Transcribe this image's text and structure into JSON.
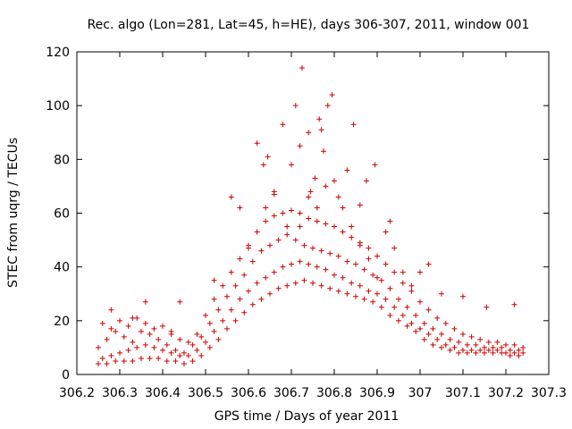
{
  "chart_data": {
    "type": "scatter",
    "title": "Rec. algo (Lon=281, Lat=45, h=HE), days 306-307, 2011, window 001",
    "xlabel": "GPS time / Days of year 2011",
    "ylabel": "STEC from uqrg / TECUs",
    "xlim": [
      306.2,
      307.3
    ],
    "ylim": [
      0,
      120
    ],
    "xticks": [
      306.2,
      306.3,
      306.4,
      306.5,
      306.6,
      306.7,
      306.8,
      306.9,
      307,
      307.1,
      307.2,
      307.3
    ],
    "xtick_labels": [
      "306.2",
      "306.3",
      "306.4",
      "306.5",
      "306.6",
      "306.7",
      "306.8",
      "306.9",
      "307",
      "307.1",
      "307.2",
      "307.3"
    ],
    "yticks": [
      0,
      20,
      40,
      60,
      80,
      100,
      120
    ],
    "ytick_labels": [
      "0",
      "20",
      "40",
      "60",
      "80",
      "100",
      "120"
    ],
    "grid": false,
    "marker": "+",
    "color": "#cc0000",
    "series": [
      {
        "points": [
          [
            306.25,
            4
          ],
          [
            306.27,
            4
          ],
          [
            306.29,
            5
          ],
          [
            306.31,
            5
          ],
          [
            306.33,
            5
          ],
          [
            306.35,
            6
          ],
          [
            306.37,
            6
          ],
          [
            306.39,
            6
          ],
          [
            306.41,
            5
          ],
          [
            306.43,
            5
          ],
          [
            306.45,
            4
          ],
          [
            306.47,
            5
          ],
          [
            306.49,
            7
          ],
          [
            306.51,
            10
          ],
          [
            306.53,
            13
          ],
          [
            306.55,
            17
          ],
          [
            306.57,
            20
          ],
          [
            306.59,
            23
          ],
          [
            306.61,
            26
          ],
          [
            306.63,
            28
          ],
          [
            306.65,
            30
          ],
          [
            306.67,
            32
          ],
          [
            306.69,
            33
          ],
          [
            306.71,
            34
          ],
          [
            306.73,
            35
          ],
          [
            306.75,
            34
          ],
          [
            306.77,
            33
          ],
          [
            306.79,
            32
          ],
          [
            306.81,
            31
          ],
          [
            306.83,
            30
          ],
          [
            306.85,
            29
          ],
          [
            306.87,
            28
          ],
          [
            306.89,
            27
          ],
          [
            306.91,
            25
          ],
          [
            306.93,
            22
          ],
          [
            306.95,
            20
          ],
          [
            306.97,
            18
          ],
          [
            306.99,
            16
          ],
          [
            307.01,
            13
          ],
          [
            307.03,
            11
          ],
          [
            307.05,
            10
          ],
          [
            307.07,
            9
          ],
          [
            307.09,
            8
          ],
          [
            307.11,
            8
          ],
          [
            307.13,
            8
          ],
          [
            307.15,
            8
          ],
          [
            307.17,
            8
          ],
          [
            307.19,
            8
          ],
          [
            307.21,
            7
          ],
          [
            307.23,
            7
          ],
          [
            306.26,
            6
          ],
          [
            306.28,
            7
          ],
          [
            306.3,
            8
          ],
          [
            306.32,
            9
          ],
          [
            306.34,
            10
          ],
          [
            306.36,
            11
          ],
          [
            306.38,
            10
          ],
          [
            306.4,
            9
          ],
          [
            306.42,
            8
          ],
          [
            306.44,
            7
          ],
          [
            306.46,
            7
          ],
          [
            306.48,
            9
          ],
          [
            306.5,
            12
          ],
          [
            306.52,
            16
          ],
          [
            306.54,
            20
          ],
          [
            306.56,
            24
          ],
          [
            306.58,
            28
          ],
          [
            306.6,
            31
          ],
          [
            306.62,
            34
          ],
          [
            306.64,
            36
          ],
          [
            306.66,
            38
          ],
          [
            306.68,
            40
          ],
          [
            306.7,
            41
          ],
          [
            306.72,
            42
          ],
          [
            306.74,
            41
          ],
          [
            306.76,
            40
          ],
          [
            306.78,
            39
          ],
          [
            306.8,
            37
          ],
          [
            306.82,
            36
          ],
          [
            306.84,
            34
          ],
          [
            306.86,
            33
          ],
          [
            306.88,
            31
          ],
          [
            306.9,
            30
          ],
          [
            306.92,
            28
          ],
          [
            306.94,
            25
          ],
          [
            306.96,
            22
          ],
          [
            306.98,
            19
          ],
          [
            307.0,
            17
          ],
          [
            307.02,
            15
          ],
          [
            307.04,
            13
          ],
          [
            307.06,
            11
          ],
          [
            307.08,
            10
          ],
          [
            307.1,
            9
          ],
          [
            307.12,
            9
          ],
          [
            307.14,
            9
          ],
          [
            307.16,
            9
          ],
          [
            307.18,
            9
          ],
          [
            307.2,
            8
          ],
          [
            307.22,
            8
          ],
          [
            307.24,
            8
          ],
          [
            306.25,
            10
          ],
          [
            306.27,
            13
          ],
          [
            306.29,
            16
          ],
          [
            306.31,
            14
          ],
          [
            306.33,
            12
          ],
          [
            306.35,
            16
          ],
          [
            306.37,
            15
          ],
          [
            306.39,
            13
          ],
          [
            306.41,
            11
          ],
          [
            306.43,
            9
          ],
          [
            306.45,
            8
          ],
          [
            306.47,
            11
          ],
          [
            306.49,
            14
          ],
          [
            306.51,
            19
          ],
          [
            306.53,
            24
          ],
          [
            306.55,
            29
          ],
          [
            306.57,
            33
          ],
          [
            306.59,
            37
          ],
          [
            306.61,
            42
          ],
          [
            306.63,
            46
          ],
          [
            306.65,
            48
          ],
          [
            306.67,
            50
          ],
          [
            306.69,
            52
          ],
          [
            306.71,
            50
          ],
          [
            306.73,
            48
          ],
          [
            306.75,
            47
          ],
          [
            306.77,
            46
          ],
          [
            306.79,
            45
          ],
          [
            306.81,
            44
          ],
          [
            306.83,
            42
          ],
          [
            306.85,
            41
          ],
          [
            306.87,
            39
          ],
          [
            306.89,
            37
          ],
          [
            306.91,
            35
          ],
          [
            306.93,
            32
          ],
          [
            306.95,
            28
          ],
          [
            306.97,
            25
          ],
          [
            306.99,
            22
          ],
          [
            307.01,
            19
          ],
          [
            307.03,
            17
          ],
          [
            307.05,
            15
          ],
          [
            307.07,
            13
          ],
          [
            307.09,
            12
          ],
          [
            307.11,
            11
          ],
          [
            307.13,
            11
          ],
          [
            307.15,
            10
          ],
          [
            307.17,
            10
          ],
          [
            307.19,
            10
          ],
          [
            307.21,
            9
          ],
          [
            307.23,
            9
          ],
          [
            306.26,
            19
          ],
          [
            306.28,
            17
          ],
          [
            306.3,
            20
          ],
          [
            306.32,
            18
          ],
          [
            306.34,
            21
          ],
          [
            306.36,
            19
          ],
          [
            306.38,
            17
          ],
          [
            306.4,
            18
          ],
          [
            306.42,
            16
          ],
          [
            306.44,
            13
          ],
          [
            306.46,
            12
          ],
          [
            306.48,
            15
          ],
          [
            306.5,
            22
          ],
          [
            306.52,
            28
          ],
          [
            306.54,
            33
          ],
          [
            306.56,
            38
          ],
          [
            306.58,
            43
          ],
          [
            306.6,
            48
          ],
          [
            306.62,
            53
          ],
          [
            306.64,
            57
          ],
          [
            306.66,
            59
          ],
          [
            306.68,
            60
          ],
          [
            306.7,
            61
          ],
          [
            306.72,
            60
          ],
          [
            306.74,
            58
          ],
          [
            306.76,
            57
          ],
          [
            306.78,
            56
          ],
          [
            306.8,
            55
          ],
          [
            306.82,
            53
          ],
          [
            306.84,
            51
          ],
          [
            306.86,
            49
          ],
          [
            306.88,
            47
          ],
          [
            306.9,
            44
          ],
          [
            306.92,
            41
          ],
          [
            306.94,
            38
          ],
          [
            306.96,
            34
          ],
          [
            306.98,
            31
          ],
          [
            307.0,
            27
          ],
          [
            307.02,
            24
          ],
          [
            307.04,
            21
          ],
          [
            307.06,
            19
          ],
          [
            307.08,
            17
          ],
          [
            307.1,
            15
          ],
          [
            307.12,
            14
          ],
          [
            307.14,
            13
          ],
          [
            307.16,
            12
          ],
          [
            307.18,
            12
          ],
          [
            307.2,
            11
          ],
          [
            307.22,
            11
          ],
          [
            307.24,
            10
          ],
          [
            306.28,
            24
          ],
          [
            306.33,
            21
          ],
          [
            306.36,
            27
          ],
          [
            306.42,
            15
          ],
          [
            306.44,
            27
          ],
          [
            306.52,
            35
          ],
          [
            306.56,
            66
          ],
          [
            306.58,
            62
          ],
          [
            306.62,
            86
          ],
          [
            306.635,
            78
          ],
          [
            306.645,
            81
          ],
          [
            306.66,
            68
          ],
          [
            306.68,
            93
          ],
          [
            306.7,
            78
          ],
          [
            306.71,
            100
          ],
          [
            306.72,
            85
          ],
          [
            306.725,
            114
          ],
          [
            306.74,
            90
          ],
          [
            306.745,
            68
          ],
          [
            306.755,
            73
          ],
          [
            306.765,
            95
          ],
          [
            306.77,
            91
          ],
          [
            306.775,
            83
          ],
          [
            306.785,
            100
          ],
          [
            306.795,
            104
          ],
          [
            306.8,
            72
          ],
          [
            306.81,
            66
          ],
          [
            306.83,
            76
          ],
          [
            306.845,
            93
          ],
          [
            306.86,
            63
          ],
          [
            306.875,
            72
          ],
          [
            306.895,
            78
          ],
          [
            306.92,
            53
          ],
          [
            306.93,
            57
          ],
          [
            307.0,
            38
          ],
          [
            307.02,
            41
          ],
          [
            307.05,
            30
          ],
          [
            307.1,
            29
          ],
          [
            307.155,
            25
          ],
          [
            307.22,
            26
          ],
          [
            306.6,
            47
          ],
          [
            306.64,
            62
          ],
          [
            306.66,
            67
          ],
          [
            306.69,
            55
          ],
          [
            306.72,
            55
          ],
          [
            306.74,
            66
          ],
          [
            306.76,
            62
          ],
          [
            306.78,
            70
          ],
          [
            306.82,
            62
          ],
          [
            306.84,
            55
          ],
          [
            306.86,
            48
          ],
          [
            306.88,
            43
          ],
          [
            306.9,
            36
          ],
          [
            306.94,
            47
          ],
          [
            306.96,
            38
          ],
          [
            306.98,
            33
          ]
        ]
      }
    ]
  }
}
